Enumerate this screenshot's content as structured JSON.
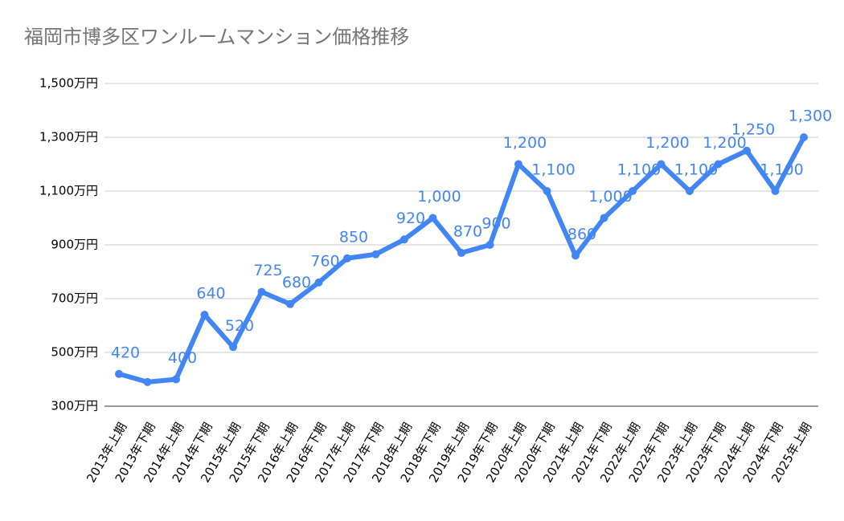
{
  "chart_data": {
    "type": "line",
    "title": "福岡市博多区ワンルームマンション価格推移",
    "categories": [
      "2013年上期",
      "2013年下期",
      "2014年上期",
      "2014年下期",
      "2015年上期",
      "2015年下期",
      "2016年上期",
      "2016年下期",
      "2017年上期",
      "2017年下期",
      "2018年上期",
      "2018年下期",
      "2019年上期",
      "2019年下期",
      "2020年上期",
      "2020年下期",
      "2021年上期",
      "2021年下期",
      "2022年上期",
      "2022年下期",
      "2023年上期",
      "2023年下期",
      "2024年上期",
      "2024年下期",
      "2025年上期"
    ],
    "series": [
      {
        "color": "#4285f4",
        "values": [
          420,
          390,
          400,
          640,
          520,
          725,
          680,
          760,
          850,
          865,
          920,
          1000,
          870,
          900,
          1200,
          1100,
          860,
          1000,
          1100,
          1200,
          1100,
          1200,
          1250,
          1100,
          1300
        ],
        "value_labels": [
          "420",
          null,
          "400",
          "640",
          "520",
          "725",
          "680",
          "760",
          "850",
          null,
          "920",
          "1,000",
          "870",
          "900",
          "1,200",
          "1,100",
          "860",
          "1,000",
          "1,100",
          "1,200",
          "1,100",
          "1,200",
          "1,250",
          "1,100",
          "1,300"
        ]
      }
    ],
    "ylim": [
      300,
      1500
    ],
    "yticks": [
      {
        "value": 300,
        "label": "300万円"
      },
      {
        "value": 500,
        "label": "500万円"
      },
      {
        "value": 700,
        "label": "700万円"
      },
      {
        "value": 900,
        "label": "900万円"
      },
      {
        "value": 1100,
        "label": "1,100万円"
      },
      {
        "value": 1300,
        "label": "1,300万円"
      },
      {
        "value": 1500,
        "label": "1,500万円"
      }
    ],
    "grid": true
  }
}
